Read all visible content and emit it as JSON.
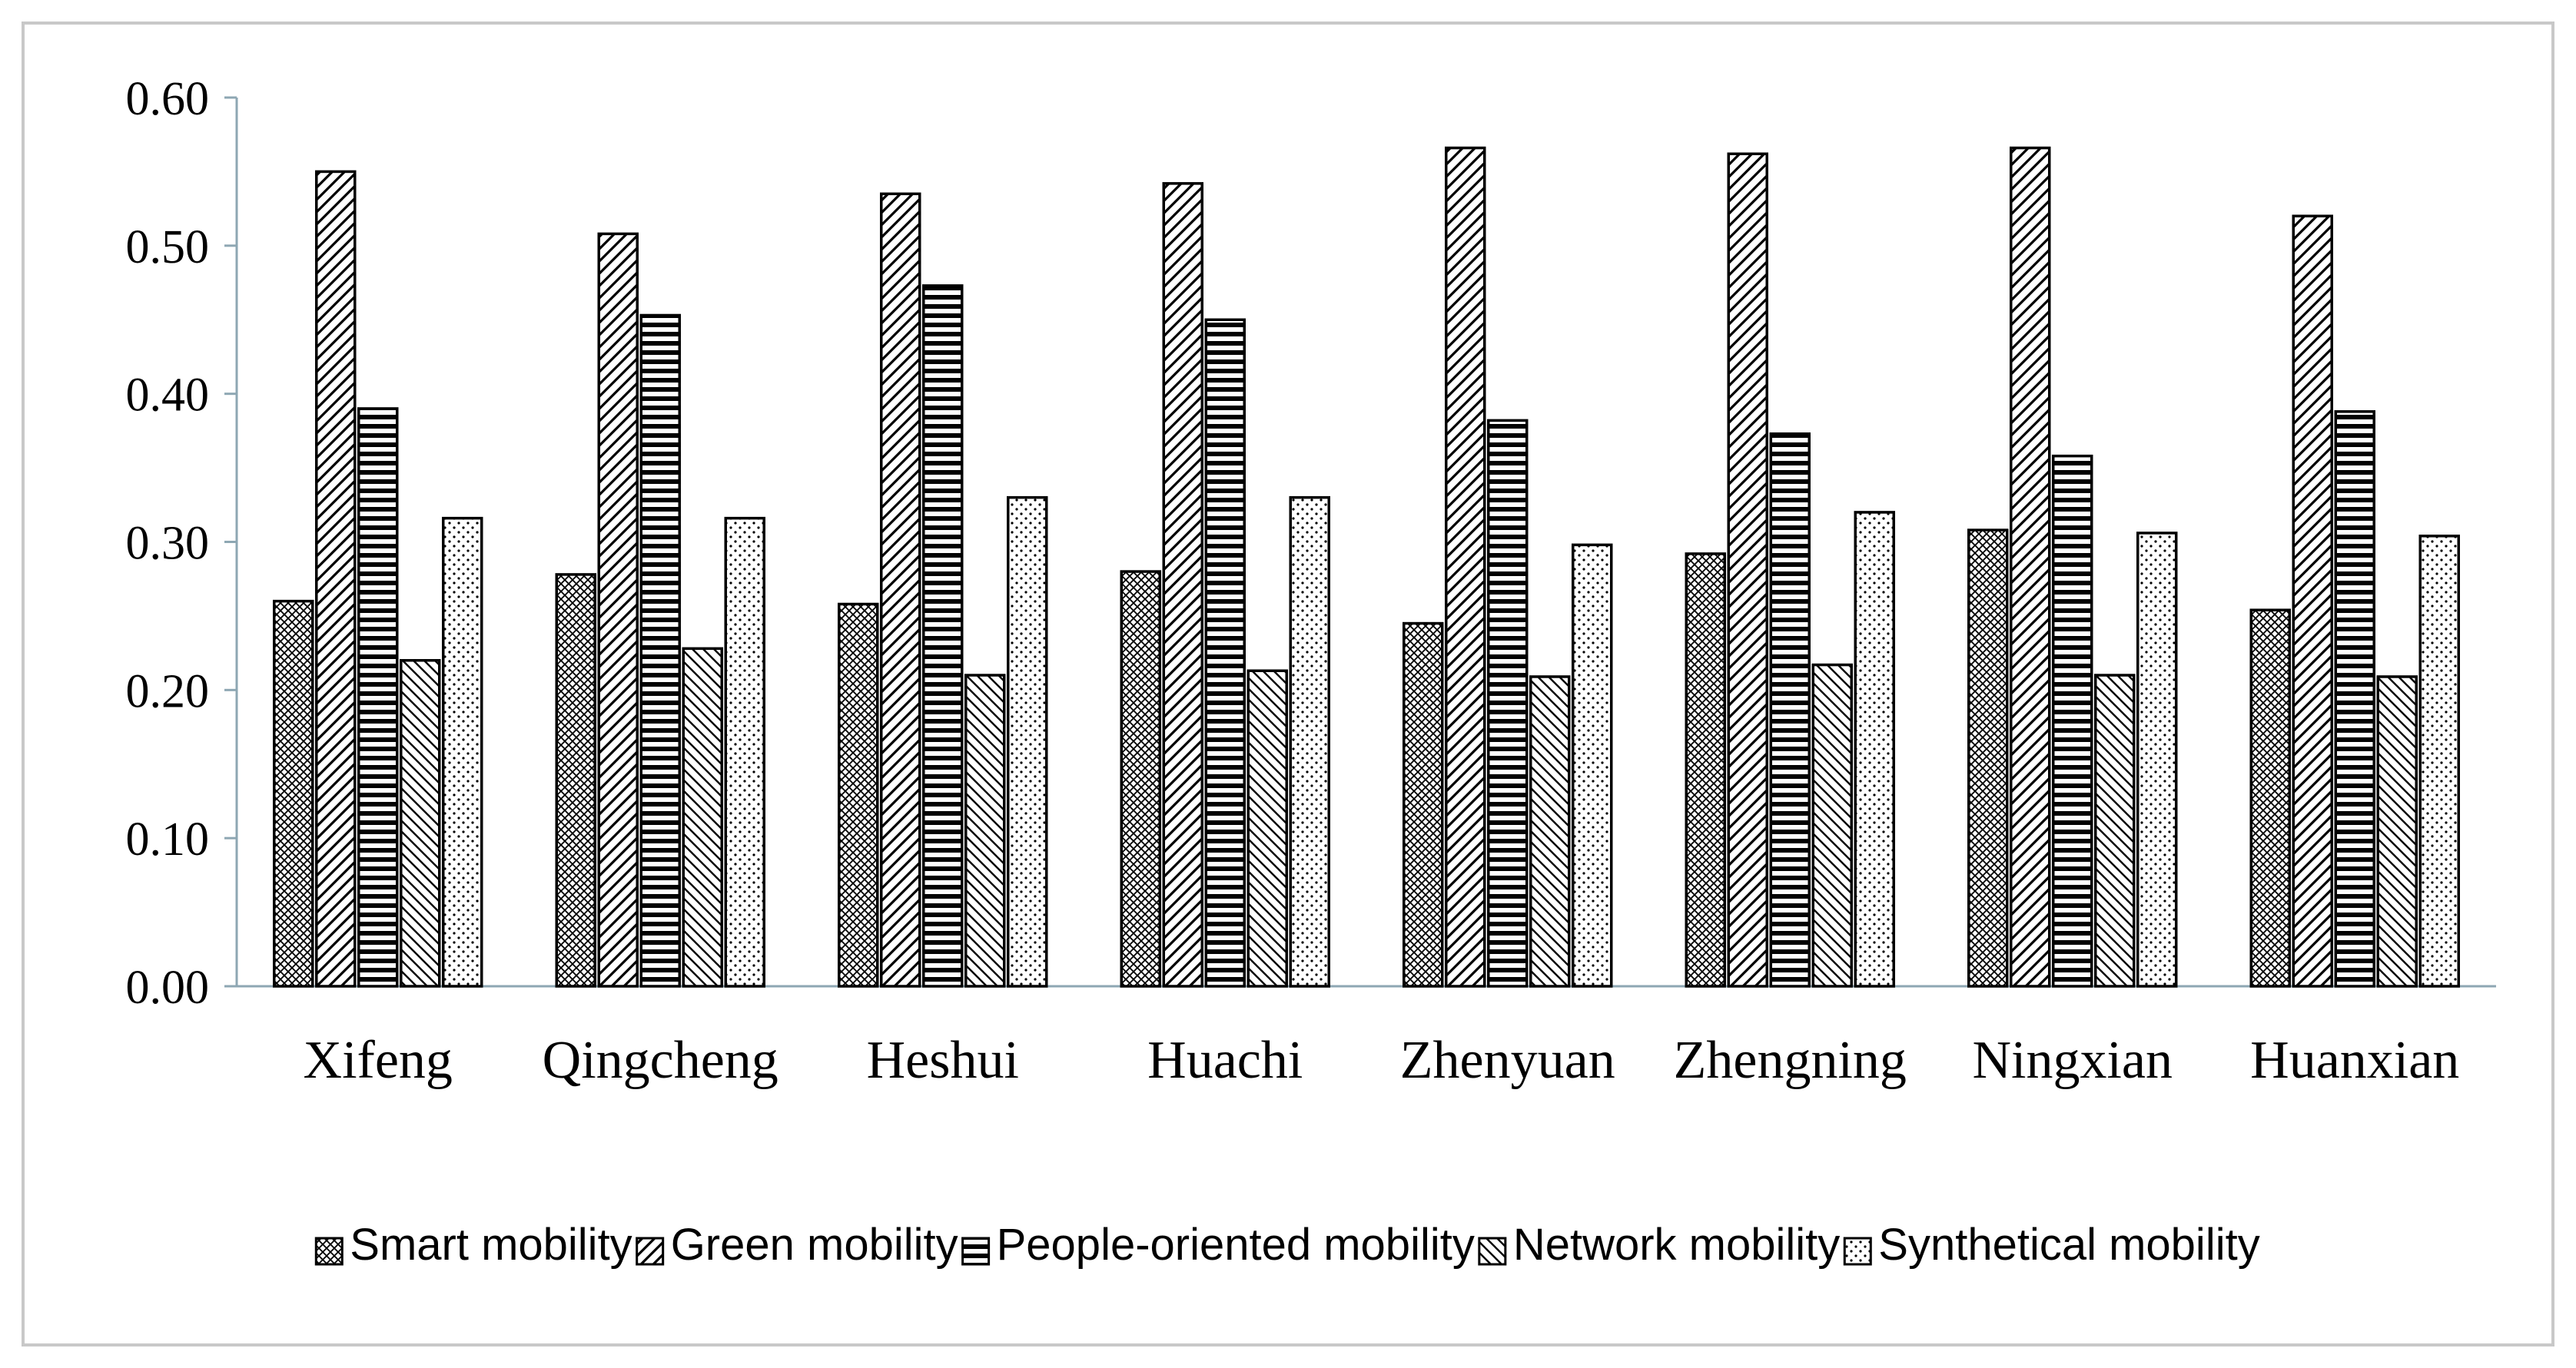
{
  "chart_data": {
    "type": "bar",
    "title": "",
    "xlabel": "",
    "ylabel": "",
    "ylim": [
      0,
      0.6
    ],
    "yticks": [
      "0.00",
      "0.10",
      "0.20",
      "0.30",
      "0.40",
      "0.50",
      "0.60"
    ],
    "grid": false,
    "legend_position": "bottom",
    "categories": [
      "Xifeng",
      "Qingcheng",
      "Heshui",
      "Huachi",
      "Zhenyuan",
      "Zhengning",
      "Ningxian",
      "Huanxian"
    ],
    "series": [
      {
        "name": "Smart mobility",
        "pattern": "crosshatch",
        "values": [
          0.26,
          0.278,
          0.258,
          0.28,
          0.245,
          0.292,
          0.308,
          0.254
        ]
      },
      {
        "name": "Green mobility",
        "pattern": "diagonal",
        "values": [
          0.55,
          0.508,
          0.535,
          0.542,
          0.566,
          0.562,
          0.566,
          0.52
        ]
      },
      {
        "name": "People-oriented mobility",
        "pattern": "horizontal",
        "values": [
          0.39,
          0.453,
          0.473,
          0.45,
          0.382,
          0.373,
          0.358,
          0.388
        ]
      },
      {
        "name": "Network mobility",
        "pattern": "backdiagonal",
        "values": [
          0.22,
          0.228,
          0.21,
          0.213,
          0.209,
          0.217,
          0.21,
          0.209
        ]
      },
      {
        "name": "Synthetical mobility",
        "pattern": "dots",
        "values": [
          0.316,
          0.316,
          0.33,
          0.33,
          0.298,
          0.32,
          0.306,
          0.304
        ]
      }
    ],
    "colors": {
      "stroke": "#000000",
      "axis": "#8ea7b3",
      "background": "#ffffff"
    }
  }
}
